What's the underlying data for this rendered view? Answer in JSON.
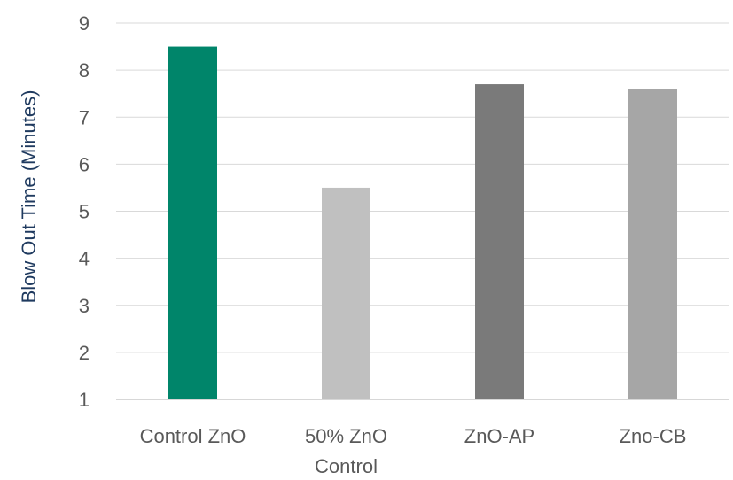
{
  "chart_data": {
    "type": "bar",
    "title": "",
    "xlabel": "",
    "ylabel": "Blow Out Time (Minutes)",
    "categories": [
      [
        "Control ZnO"
      ],
      [
        "50% ZnO",
        "Control"
      ],
      [
        "ZnO-AP"
      ],
      [
        "Zno-CB"
      ]
    ],
    "values": [
      8.5,
      5.5,
      7.7,
      7.6
    ],
    "colors": [
      "#00856a",
      "#c0c0c0",
      "#7a7a7a",
      "#a6a6a6"
    ],
    "ylim": [
      1,
      9
    ],
    "yticks": [
      1,
      2,
      3,
      4,
      5,
      6,
      7,
      8,
      9
    ],
    "grid": true,
    "legend": "none"
  }
}
